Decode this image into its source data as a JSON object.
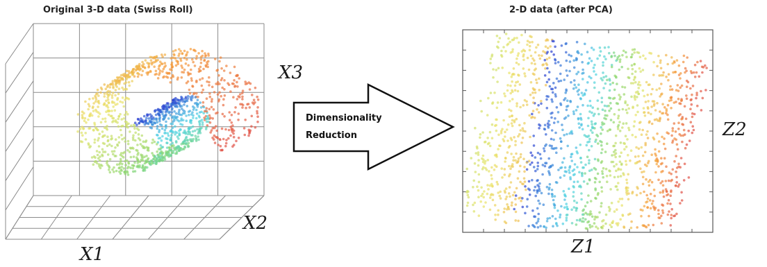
{
  "left_panel": {
    "title": "Original 3-D data (Swiss Roll)",
    "axis_x1": "X1",
    "axis_x2": "X2",
    "axis_x3": "X3"
  },
  "arrow": {
    "line1": "Dimensionality",
    "line2": "Reduction"
  },
  "right_panel": {
    "title": "2-D data (after PCA)",
    "axis_z1": "Z1",
    "axis_z2": "Z2"
  },
  "colors": {
    "red": "#e0524a",
    "orange": "#f59a3a",
    "yellow": "#e9e46a",
    "green": "#86d66f",
    "cyan": "#4fd3e3",
    "blue": "#2c3fd1",
    "grid": "#8a8a8a"
  }
}
